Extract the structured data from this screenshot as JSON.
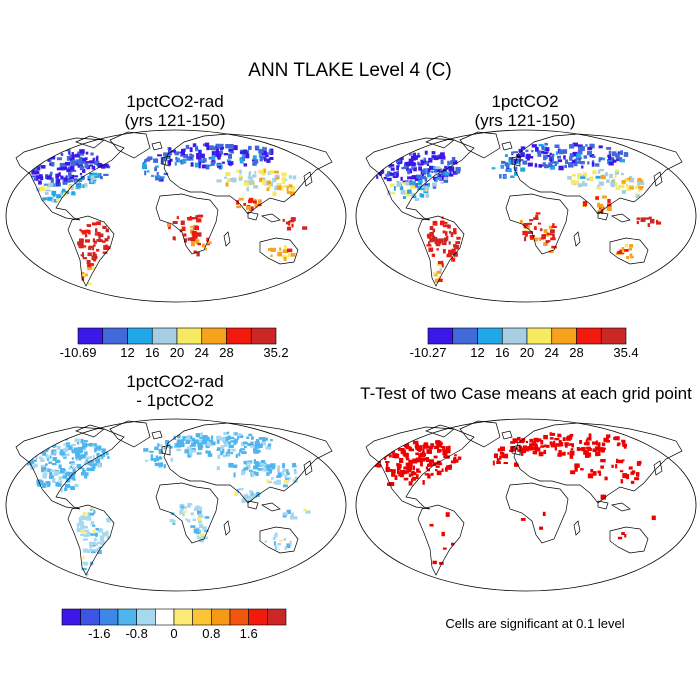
{
  "title": "ANN TLAKE Level 4 (C)",
  "panels": [
    {
      "title_line1": "1pctCO2-rad",
      "title_line2": "(yrs 121-150)"
    },
    {
      "title_line1": "1pctCO2",
      "title_line2": "(yrs 121-150)"
    },
    {
      "title_line1": "1pctCO2-rad",
      "title_line2": "- 1pctCO2"
    },
    {
      "title_line1": "T-Test of two Case means at each grid point",
      "title_line2": ""
    }
  ],
  "colorbars": {
    "abs_colors": [
      "#3b17e8",
      "#4169d9",
      "#21a8e8",
      "#a6cfe3",
      "#f7ea63",
      "#f6a21c",
      "#f21a0d",
      "#cc2727"
    ],
    "abs_left_ticks": [
      "-10.69",
      "12",
      "16",
      "20",
      "24",
      "28",
      "35.2"
    ],
    "abs_right_ticks": [
      "-10.27",
      "12",
      "16",
      "20",
      "24",
      "28",
      "35.4"
    ],
    "diff_colors": [
      "#3b17e8",
      "#3c55e4",
      "#3d88e6",
      "#4fb5ee",
      "#a6d8ef",
      "#ffffff",
      "#fdeb77",
      "#fcc536",
      "#f69a16",
      "#f2550e",
      "#f21a0d",
      "#cc2727"
    ],
    "diff_ticks": [
      "-1.6",
      "-0.8",
      "0",
      "0.8",
      "1.6"
    ]
  },
  "significance_note": "Cells are significant at 0.1 level",
  "significance_color": "#ee0000"
}
